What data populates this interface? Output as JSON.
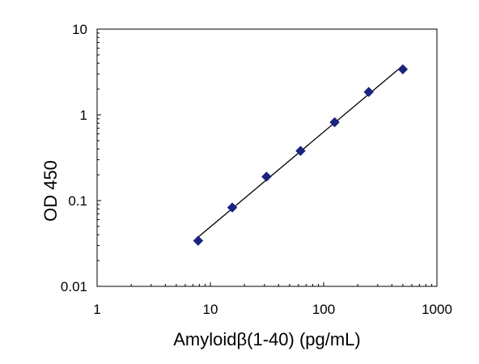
{
  "chart_data": {
    "type": "scatter",
    "title": "",
    "xlabel": "Amyloidβ(1-40)  (pg/mL)",
    "ylabel": "OD 450",
    "xscale": "log",
    "yscale": "log",
    "xlim": [
      1,
      1000
    ],
    "ylim": [
      0.01,
      10
    ],
    "xticks": [
      1,
      10,
      100,
      1000
    ],
    "xtick_labels": [
      "1",
      "10",
      "100",
      "1000"
    ],
    "yticks": [
      0.01,
      0.1,
      1,
      10
    ],
    "ytick_labels": [
      "0.01",
      "0.1",
      "1",
      "10"
    ],
    "grid": false,
    "legend": "none",
    "trendline": true,
    "marker": "diamond",
    "marker_color": "#1a237e",
    "line_color": "#000000",
    "series": [
      {
        "x": [
          7.8,
          15.6,
          31.3,
          62.5,
          125,
          250,
          500
        ],
        "y": [
          0.034,
          0.083,
          0.19,
          0.38,
          0.82,
          1.85,
          3.4
        ]
      }
    ]
  }
}
